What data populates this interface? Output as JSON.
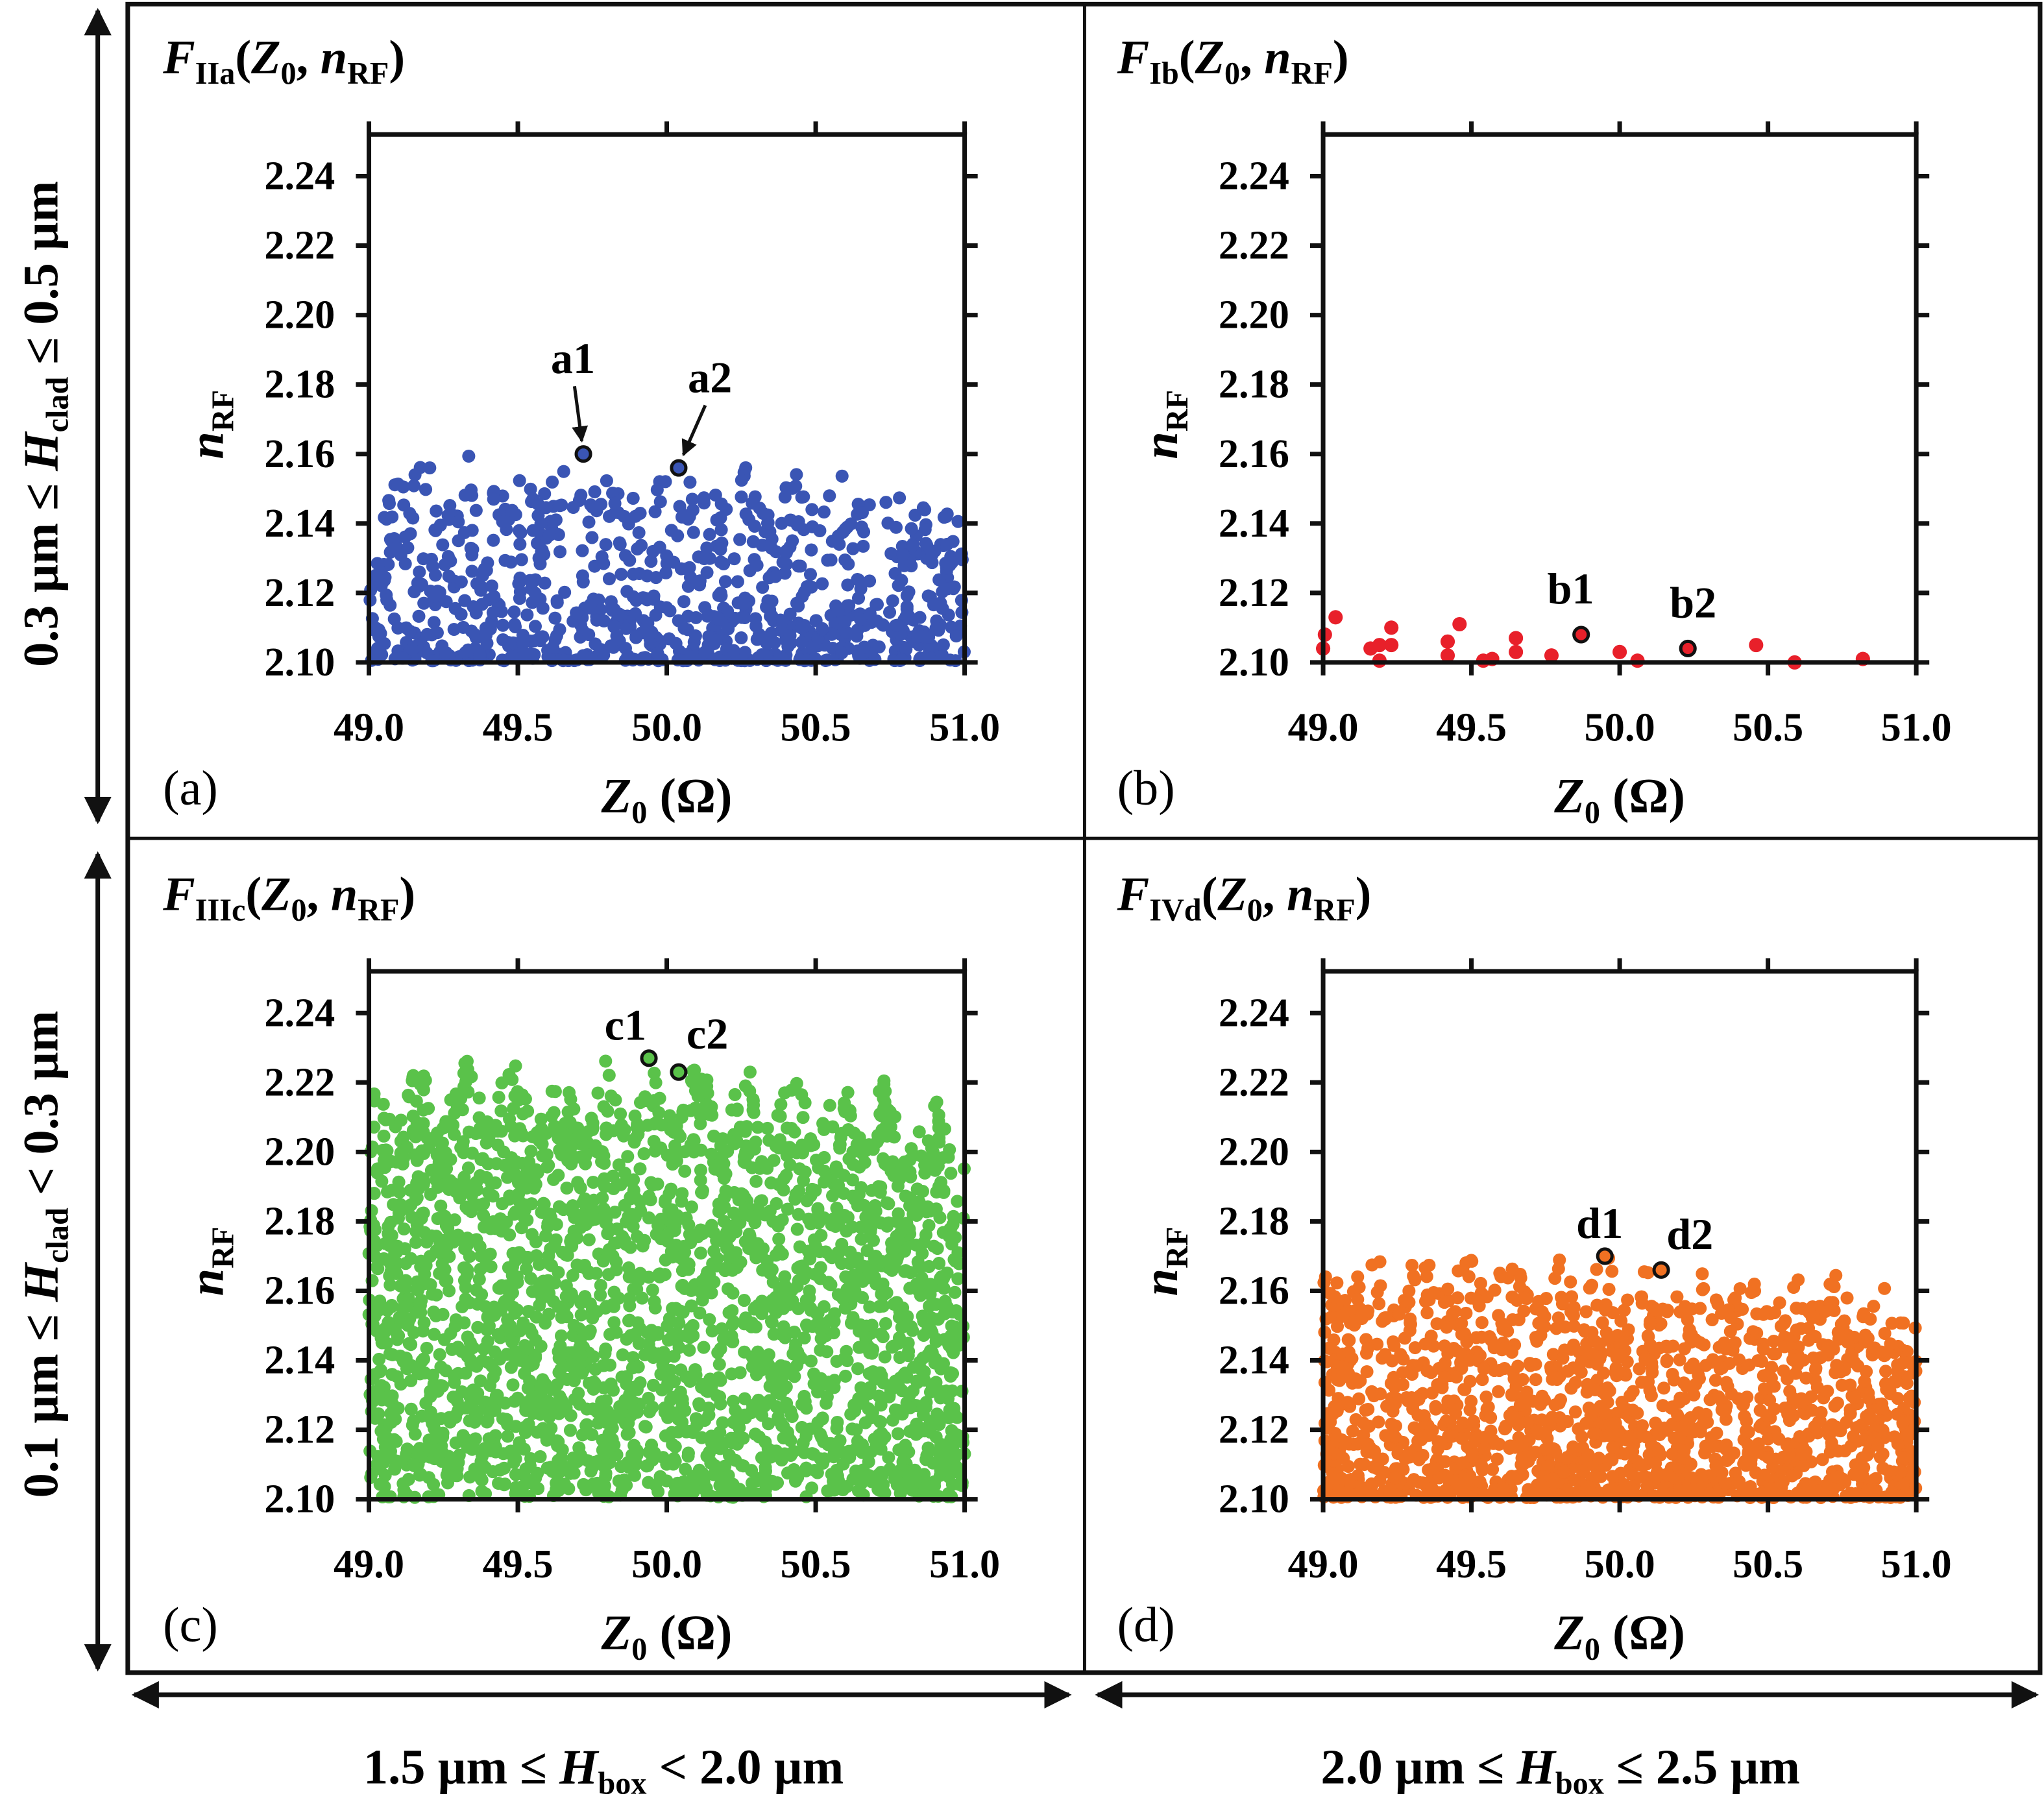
{
  "colors": {
    "a": "#3a55b4",
    "b": "#e8202a",
    "c": "#5ac24a",
    "d": "#f07122"
  },
  "side_labels": {
    "top": {
      "pre": "0.3 µm ≤ ",
      "var": "H",
      "sub": "clad",
      "post": " ≤ 0.5 µm"
    },
    "bottom": {
      "pre": "0.1 µm ≤ ",
      "var": "H",
      "sub": "clad",
      "post": " < 0.3 µm"
    },
    "left": {
      "pre": "1.5 µm ≤ ",
      "var": "H",
      "sub": "box",
      "post": " < 2.0 µm"
    },
    "right": {
      "pre": "2.0 µm ≤ ",
      "var": "H",
      "sub": "box",
      "post": " ≤ 2.5 µm"
    }
  },
  "chart_data": [
    {
      "id": "a",
      "type": "scatter",
      "panel_letter": "(a)",
      "title": {
        "f": "F",
        "sub": "IIa",
        "z": "Z",
        "zsub": "0",
        "n": "n",
        "nsub": "RF"
      },
      "xlabel": {
        "z": "Z",
        "zsub": "0",
        "unit": "(Ω)"
      },
      "ylabel": {
        "n": "n",
        "nsub": "RF"
      },
      "xlim": [
        49.0,
        51.0
      ],
      "ylim": [
        2.1,
        2.252
      ],
      "xticks": [
        "49.0",
        "49.5",
        "50.0",
        "50.5",
        "51.0"
      ],
      "yticks": [
        "2.10",
        "2.12",
        "2.14",
        "2.16",
        "2.18",
        "2.20",
        "2.22",
        "2.24"
      ],
      "color": "#3a55b4",
      "dense": true,
      "n_points": 900,
      "upper_envelope": {
        "x": [
          49.0,
          49.15,
          49.5,
          50.0,
          50.5,
          51.0
        ],
        "y": [
          2.158,
          2.163,
          2.158,
          2.158,
          2.155,
          2.15
        ]
      },
      "highlighted": [
        {
          "label": "a1",
          "x": 49.72,
          "y": 2.16
        },
        {
          "label": "a2",
          "x": 50.04,
          "y": 2.156
        }
      ]
    },
    {
      "id": "b",
      "type": "scatter",
      "panel_letter": "(b)",
      "title": {
        "f": "F",
        "sub": "Ib",
        "z": "Z",
        "zsub": "0",
        "n": "n",
        "nsub": "RF"
      },
      "xlabel": {
        "z": "Z",
        "zsub": "0",
        "unit": "(Ω)"
      },
      "ylabel": {
        "n": "n",
        "nsub": "RF"
      },
      "xlim": [
        49.0,
        51.0
      ],
      "ylim": [
        2.1,
        2.252
      ],
      "xticks": [
        "49.0",
        "49.5",
        "50.0",
        "50.5",
        "51.0"
      ],
      "yticks": [
        "2.10",
        "2.12",
        "2.14",
        "2.16",
        "2.18",
        "2.20",
        "2.22",
        "2.24"
      ],
      "color": "#e8202a",
      "dense": false,
      "points": [
        [
          49.042,
          2.113
        ],
        [
          49.006,
          2.108
        ],
        [
          49.0,
          2.104
        ],
        [
          49.16,
          2.104
        ],
        [
          49.19,
          2.105
        ],
        [
          49.19,
          2.1005
        ],
        [
          49.23,
          2.11
        ],
        [
          49.23,
          2.105
        ],
        [
          49.42,
          2.106
        ],
        [
          49.42,
          2.102
        ],
        [
          49.46,
          2.111
        ],
        [
          49.54,
          2.1005
        ],
        [
          49.57,
          2.101
        ],
        [
          49.65,
          2.107
        ],
        [
          49.65,
          2.103
        ],
        [
          49.77,
          2.102
        ],
        [
          50.0,
          2.103
        ],
        [
          50.06,
          2.1005
        ],
        [
          50.46,
          2.105
        ],
        [
          50.59,
          2.1
        ],
        [
          50.82,
          2.101
        ]
      ],
      "highlighted": [
        {
          "label": "b1",
          "x": 49.87,
          "y": 2.108
        },
        {
          "label": "b2",
          "x": 50.23,
          "y": 2.104
        }
      ]
    },
    {
      "id": "c",
      "type": "scatter",
      "panel_letter": "(c)",
      "title": {
        "f": "F",
        "sub": "IIIc",
        "z": "Z",
        "zsub": "0",
        "n": "n",
        "nsub": "RF"
      },
      "xlabel": {
        "z": "Z",
        "zsub": "0",
        "unit": "(Ω)"
      },
      "ylabel": {
        "n": "n",
        "nsub": "RF"
      },
      "xlim": [
        49.0,
        51.0
      ],
      "ylim": [
        2.1,
        2.252
      ],
      "xticks": [
        "49.0",
        "49.5",
        "50.0",
        "50.5",
        "51.0"
      ],
      "yticks": [
        "2.10",
        "2.12",
        "2.14",
        "2.16",
        "2.18",
        "2.20",
        "2.22",
        "2.24"
      ],
      "color": "#5ac24a",
      "dense": true,
      "n_points": 2600,
      "upper_envelope": {
        "x": [
          49.0,
          49.15,
          49.4,
          49.7,
          50.0,
          50.4,
          50.7,
          51.0
        ],
        "y": [
          2.224,
          2.228,
          2.229,
          2.226,
          2.227,
          2.225,
          2.222,
          2.215
        ]
      },
      "highlighted": [
        {
          "label": "c1",
          "x": 49.94,
          "y": 2.227
        },
        {
          "label": "c2",
          "x": 50.04,
          "y": 2.223
        }
      ]
    },
    {
      "id": "d",
      "type": "scatter",
      "panel_letter": "(d)",
      "title": {
        "f": "F",
        "sub": "IVd",
        "z": "Z",
        "zsub": "0",
        "n": "n",
        "nsub": "RF"
      },
      "xlabel": {
        "z": "Z",
        "zsub": "0",
        "unit": "(Ω)"
      },
      "ylabel": {
        "n": "n",
        "nsub": "RF"
      },
      "xlim": [
        49.0,
        51.0
      ],
      "ylim": [
        2.1,
        2.252
      ],
      "xticks": [
        "49.0",
        "49.5",
        "50.0",
        "50.5",
        "51.0"
      ],
      "yticks": [
        "2.10",
        "2.12",
        "2.14",
        "2.16",
        "2.18",
        "2.20",
        "2.22",
        "2.24"
      ],
      "color": "#f07122",
      "dense": true,
      "n_points": 1600,
      "upper_envelope": {
        "x": [
          49.0,
          49.1,
          49.5,
          50.0,
          50.4,
          50.8,
          51.0
        ],
        "y": [
          2.165,
          2.173,
          2.171,
          2.17,
          2.167,
          2.165,
          2.157
        ]
      },
      "highlighted": [
        {
          "label": "d1",
          "x": 49.95,
          "y": 2.17
        },
        {
          "label": "d2",
          "x": 50.14,
          "y": 2.166
        }
      ]
    }
  ]
}
